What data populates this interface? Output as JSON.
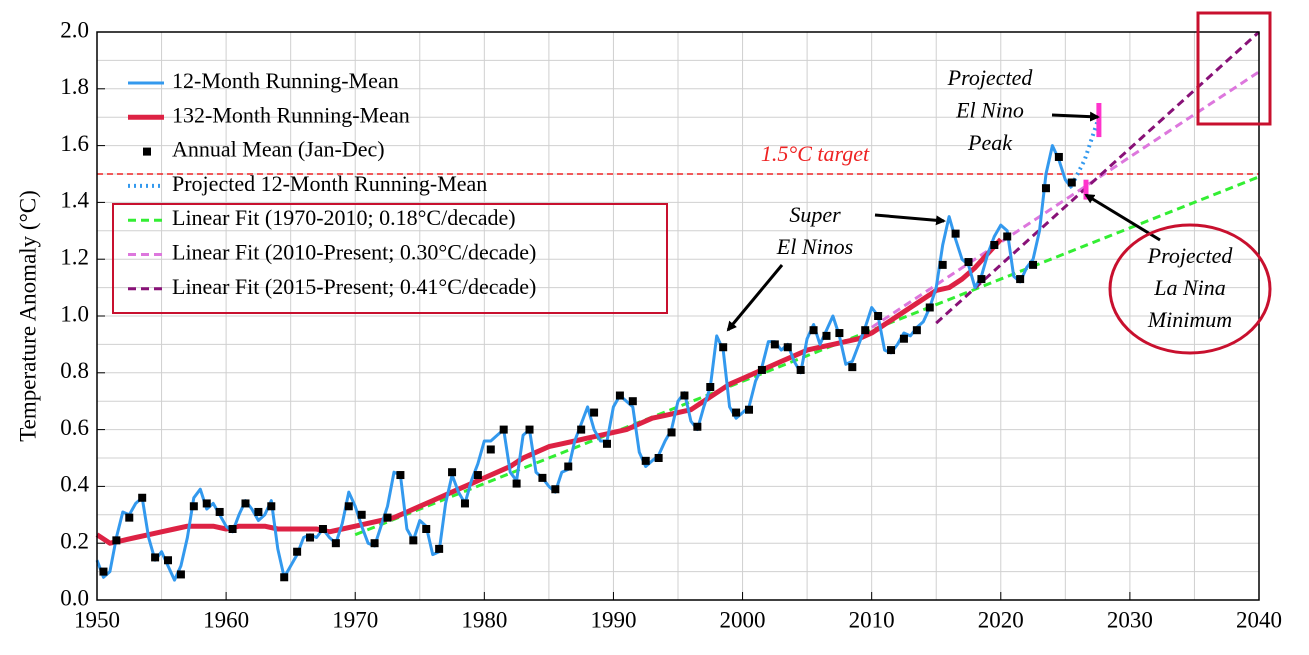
{
  "chart_data": {
    "type": "line",
    "y_label": "Temperature Anomaly (°C)",
    "xlim": [
      1950,
      2040
    ],
    "ylim": [
      0,
      2
    ],
    "xticks": [
      1950,
      1960,
      1970,
      1980,
      1990,
      2000,
      2010,
      2020,
      2030,
      2040
    ],
    "xminor_ticks": [
      1955,
      1965,
      1975,
      1985,
      1995,
      2005,
      2015,
      2025,
      2035
    ],
    "yticks": [
      {
        "value": 0,
        "label": "0.0"
      },
      0.2,
      0.4,
      0.6,
      0.8,
      {
        "value": 1,
        "label": "1.0"
      },
      1.2,
      1.4,
      1.6,
      1.8,
      {
        "value": 2,
        "label": "2.0"
      }
    ],
    "yminor_ticks": [
      0.1,
      0.3,
      0.5,
      0.7,
      0.9,
      1.1,
      1.3,
      1.5,
      1.7,
      1.9
    ],
    "grid": true,
    "legend": "upper left",
    "target": {
      "value": 1.5,
      "label": "1.5°C target",
      "color": "#ee2222"
    },
    "series": [
      {
        "name": "12-Month Running-Mean",
        "color": "#3399ee",
        "style": "solid",
        "x": [
          1950.0,
          1950.5,
          1951.0,
          1951.5,
          1952.0,
          1952.5,
          1953.0,
          1953.5,
          1954.0,
          1954.5,
          1955.0,
          1955.5,
          1956.0,
          1956.5,
          1957.0,
          1957.5,
          1958.0,
          1958.5,
          1959.0,
          1959.5,
          1960.0,
          1960.5,
          1961.0,
          1961.5,
          1962.0,
          1962.5,
          1963.0,
          1963.5,
          1964.0,
          1964.5,
          1965.0,
          1965.5,
          1966.0,
          1966.5,
          1967.0,
          1967.5,
          1968.0,
          1968.5,
          1969.0,
          1969.5,
          1970.0,
          1970.5,
          1971.0,
          1971.5,
          1972.0,
          1972.5,
          1973.0,
          1973.5,
          1974.0,
          1974.5,
          1975.0,
          1975.5,
          1976.0,
          1976.5,
          1977.0,
          1977.5,
          1978.0,
          1978.5,
          1979.0,
          1979.5,
          1980.0,
          1980.5,
          1981.0,
          1981.5,
          1982.0,
          1982.5,
          1983.0,
          1983.5,
          1984.0,
          1984.5,
          1985.0,
          1985.5,
          1986.0,
          1986.5,
          1987.0,
          1987.5,
          1988.0,
          1988.5,
          1989.0,
          1989.5,
          1990.0,
          1990.5,
          1991.0,
          1991.5,
          1992.0,
          1992.5,
          1993.0,
          1993.5,
          1994.0,
          1994.5,
          1995.0,
          1995.5,
          1996.0,
          1996.5,
          1997.0,
          1997.5,
          1998.0,
          1998.5,
          1999.0,
          1999.5,
          2000.0,
          2000.5,
          2001.0,
          2001.5,
          2002.0,
          2002.5,
          2003.0,
          2003.5,
          2004.0,
          2004.5,
          2005.0,
          2005.5,
          2006.0,
          2006.5,
          2007.0,
          2007.5,
          2008.0,
          2008.5,
          2009.0,
          2009.5,
          2010.0,
          2010.5,
          2011.0,
          2011.5,
          2012.0,
          2012.5,
          2013.0,
          2013.5,
          2014.0,
          2014.5,
          2015.0,
          2015.5,
          2016.0,
          2016.5,
          2017.0,
          2017.5,
          2018.0,
          2018.5,
          2019.0,
          2019.5,
          2020.0,
          2020.5,
          2021.0,
          2021.5,
          2022.0,
          2022.5,
          2023.0,
          2023.5,
          2024.0,
          2024.5,
          2025.0,
          2025.5
        ],
        "values": [
          0.14,
          0.08,
          0.1,
          0.22,
          0.31,
          0.3,
          0.34,
          0.36,
          0.22,
          0.14,
          0.17,
          0.12,
          0.07,
          0.12,
          0.22,
          0.36,
          0.39,
          0.32,
          0.34,
          0.3,
          0.26,
          0.24,
          0.3,
          0.35,
          0.32,
          0.28,
          0.3,
          0.35,
          0.18,
          0.08,
          0.12,
          0.16,
          0.22,
          0.23,
          0.22,
          0.25,
          0.22,
          0.2,
          0.27,
          0.38,
          0.33,
          0.26,
          0.2,
          0.19,
          0.26,
          0.33,
          0.45,
          0.44,
          0.25,
          0.21,
          0.28,
          0.26,
          0.16,
          0.17,
          0.34,
          0.44,
          0.38,
          0.34,
          0.42,
          0.48,
          0.56,
          0.56,
          0.58,
          0.6,
          0.45,
          0.42,
          0.58,
          0.6,
          0.45,
          0.43,
          0.4,
          0.38,
          0.45,
          0.46,
          0.56,
          0.62,
          0.68,
          0.6,
          0.56,
          0.56,
          0.68,
          0.72,
          0.7,
          0.68,
          0.52,
          0.47,
          0.49,
          0.51,
          0.56,
          0.6,
          0.7,
          0.73,
          0.63,
          0.6,
          0.68,
          0.75,
          0.93,
          0.88,
          0.68,
          0.64,
          0.66,
          0.68,
          0.77,
          0.82,
          0.91,
          0.91,
          0.88,
          0.9,
          0.84,
          0.8,
          0.92,
          0.97,
          0.9,
          0.95,
          1.0,
          0.93,
          0.83,
          0.84,
          0.9,
          0.96,
          1.03,
          1.0,
          0.88,
          0.87,
          0.9,
          0.94,
          0.93,
          0.96,
          0.98,
          1.03,
          1.1,
          1.25,
          1.35,
          1.27,
          1.2,
          1.18,
          1.1,
          1.14,
          1.22,
          1.28,
          1.32,
          1.3,
          1.14,
          1.12,
          1.17,
          1.2,
          1.3,
          1.5,
          1.6,
          1.55,
          1.48,
          1.45
        ]
      },
      {
        "name": "132-Month Running-Mean",
        "color": "#dd2244",
        "style": "thick",
        "x": [
          1950,
          1951,
          1952,
          1953,
          1954,
          1955,
          1956,
          1957,
          1958,
          1959,
          1960,
          1961,
          1962,
          1963,
          1964,
          1965,
          1966,
          1967,
          1968,
          1969,
          1970,
          1971,
          1972,
          1973,
          1974,
          1975,
          1976,
          1977,
          1978,
          1979,
          1980,
          1981,
          1982,
          1983,
          1984,
          1985,
          1986,
          1987,
          1988,
          1989,
          1990,
          1991,
          1992,
          1993,
          1994,
          1995,
          1996,
          1997,
          1998,
          1999,
          2000,
          2001,
          2002,
          2003,
          2004,
          2005,
          2006,
          2007,
          2008,
          2009,
          2010,
          2011,
          2012,
          2013,
          2014,
          2015,
          2016,
          2017,
          2018,
          2019,
          2020
        ],
        "values": [
          0.23,
          0.2,
          0.21,
          0.22,
          0.23,
          0.24,
          0.25,
          0.26,
          0.26,
          0.26,
          0.25,
          0.26,
          0.26,
          0.26,
          0.25,
          0.25,
          0.25,
          0.25,
          0.24,
          0.25,
          0.26,
          0.27,
          0.28,
          0.29,
          0.31,
          0.33,
          0.35,
          0.37,
          0.39,
          0.41,
          0.43,
          0.45,
          0.47,
          0.5,
          0.52,
          0.54,
          0.55,
          0.56,
          0.57,
          0.58,
          0.59,
          0.6,
          0.62,
          0.64,
          0.65,
          0.66,
          0.67,
          0.7,
          0.73,
          0.76,
          0.78,
          0.8,
          0.82,
          0.84,
          0.86,
          0.88,
          0.89,
          0.9,
          0.91,
          0.92,
          0.94,
          0.97,
          1.0,
          1.03,
          1.06,
          1.09,
          1.1,
          1.13,
          1.17,
          1.22,
          1.27
        ]
      },
      {
        "name": "Annual Mean (Jan-Dec)",
        "color": "#000000",
        "style": "markers",
        "x": [
          1950.5,
          1951.5,
          1952.5,
          1953.5,
          1954.5,
          1955.5,
          1956.5,
          1957.5,
          1958.5,
          1959.5,
          1960.5,
          1961.5,
          1962.5,
          1963.5,
          1964.5,
          1965.5,
          1966.5,
          1967.5,
          1968.5,
          1969.5,
          1970.5,
          1971.5,
          1972.5,
          1973.5,
          1974.5,
          1975.5,
          1976.5,
          1977.5,
          1978.5,
          1979.5,
          1980.5,
          1981.5,
          1982.5,
          1983.5,
          1984.5,
          1985.5,
          1986.5,
          1987.5,
          1988.5,
          1989.5,
          1990.5,
          1991.5,
          1992.5,
          1993.5,
          1994.5,
          1995.5,
          1996.5,
          1997.5,
          1998.5,
          1999.5,
          2000.5,
          2001.5,
          2002.5,
          2003.5,
          2004.5,
          2005.5,
          2006.5,
          2007.5,
          2008.5,
          2009.5,
          2010.5,
          2011.5,
          2012.5,
          2013.5,
          2014.5,
          2015.5,
          2016.5,
          2017.5,
          2018.5,
          2019.5,
          2020.5,
          2021.5,
          2022.5,
          2023.5,
          2024.5,
          2025.5
        ],
        "values": [
          0.1,
          0.21,
          0.29,
          0.36,
          0.15,
          0.14,
          0.09,
          0.33,
          0.34,
          0.31,
          0.25,
          0.34,
          0.31,
          0.33,
          0.08,
          0.17,
          0.22,
          0.25,
          0.2,
          0.33,
          0.3,
          0.2,
          0.29,
          0.44,
          0.21,
          0.25,
          0.18,
          0.45,
          0.34,
          0.44,
          0.53,
          0.6,
          0.41,
          0.6,
          0.43,
          0.39,
          0.47,
          0.6,
          0.66,
          0.55,
          0.72,
          0.7,
          0.49,
          0.5,
          0.59,
          0.72,
          0.61,
          0.75,
          0.89,
          0.66,
          0.67,
          0.81,
          0.9,
          0.89,
          0.81,
          0.95,
          0.93,
          0.94,
          0.82,
          0.95,
          1.0,
          0.88,
          0.92,
          0.95,
          1.03,
          1.18,
          1.29,
          1.19,
          1.13,
          1.25,
          1.28,
          1.13,
          1.18,
          1.45,
          1.56,
          1.47
        ]
      },
      {
        "name": "Projected 12-Month Running-Mean",
        "color": "#3399ee",
        "style": "dotted",
        "x": [
          2025.5,
          2026.5,
          2027.6
        ],
        "values": [
          1.46,
          1.55,
          1.7
        ]
      },
      {
        "name": "Linear Fit (1970-2010; 0.18°C/decade)",
        "color": "#33ee33",
        "style": "dashed",
        "x": [
          1970,
          2040
        ],
        "values": [
          0.23,
          1.49
        ]
      },
      {
        "name": "Linear Fit (2010-Present; 0.30°C/decade)",
        "color": "#dd77dd",
        "style": "dashed",
        "x": [
          2010,
          2040
        ],
        "values": [
          0.96,
          1.86
        ]
      },
      {
        "name": "Linear Fit (2015-Present; 0.41°C/decade)",
        "color": "#881177",
        "style": "dashed",
        "x": [
          2015,
          2040
        ],
        "values": [
          0.975,
          2.0
        ]
      }
    ],
    "range_markers": [
      {
        "x": 2027.6,
        "values": [
          1.63,
          1.75
        ],
        "color": "#ff33cc"
      },
      {
        "x": 2026.6,
        "values": [
          1.41,
          1.48
        ],
        "color": "#ff33cc"
      }
    ],
    "annotations": [
      {
        "lines": [
          "Super",
          "El Ninos"
        ]
      },
      {
        "lines": [
          "Projected",
          "El Nino",
          "Peak"
        ]
      },
      {
        "lines": [
          "Projected",
          "La Nina",
          "Minimum"
        ]
      }
    ]
  }
}
